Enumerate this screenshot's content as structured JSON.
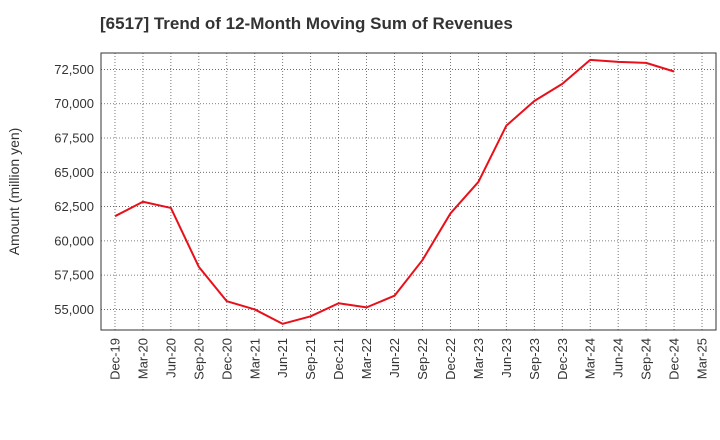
{
  "chart_data": {
    "type": "line",
    "title": "[6517]  Trend of 12-Month Moving Sum of Revenues",
    "xlabel": "",
    "ylabel": "Amount (million yen)",
    "ylim": [
      53500,
      73700
    ],
    "yticks": [
      55000,
      57500,
      60000,
      62500,
      65000,
      67500,
      70000,
      72500
    ],
    "ytick_labels": [
      "55,000",
      "57,500",
      "60,000",
      "62,500",
      "65,000",
      "67,500",
      "70,000",
      "72,500"
    ],
    "categories": [
      "Dec-19",
      "Mar-20",
      "Jun-20",
      "Sep-20",
      "Dec-20",
      "Mar-21",
      "Jun-21",
      "Sep-21",
      "Dec-21",
      "Mar-22",
      "Jun-22",
      "Sep-22",
      "Dec-22",
      "Mar-23",
      "Jun-23",
      "Sep-23",
      "Dec-23",
      "Mar-24",
      "Jun-24",
      "Sep-24",
      "Dec-24",
      "Mar-25"
    ],
    "grid": true,
    "series": [
      {
        "color": "#e8101a",
        "values": [
          61800,
          62850,
          62400,
          58100,
          55600,
          55000,
          53950,
          54500,
          55450,
          55150,
          56000,
          58600,
          62000,
          64300,
          68400,
          70200,
          71450,
          73200,
          73050,
          72980,
          72350,
          null
        ]
      }
    ]
  }
}
